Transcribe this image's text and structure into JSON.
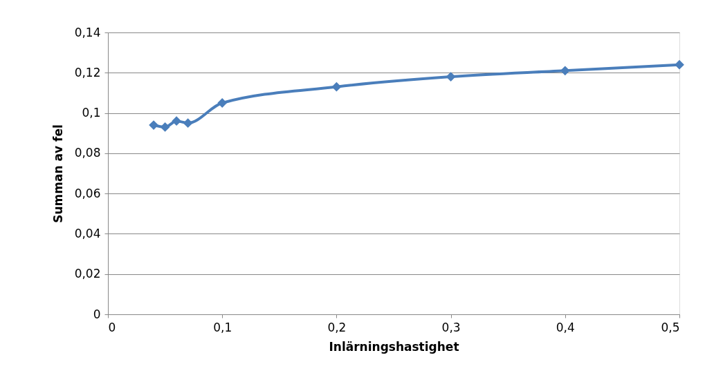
{
  "chart_data": {
    "type": "line",
    "xlabel": "Inlärningshastighet",
    "ylabel": "Summan av fel",
    "x": [
      0.04,
      0.05,
      0.06,
      0.07,
      0.1,
      0.2,
      0.3,
      0.4,
      0.5
    ],
    "series": [
      {
        "color": "#4a7ebb",
        "values": [
          0.094,
          0.093,
          0.096,
          0.095,
          0.105,
          0.113,
          0.118,
          0.121,
          0.124
        ]
      }
    ],
    "xlim": [
      0,
      0.5
    ],
    "ylim": [
      0,
      0.14
    ],
    "xticks": [
      0,
      {
        "value": 0.1,
        "label": "0,1"
      },
      {
        "value": 0.2,
        "label": "0,2"
      },
      {
        "value": 0.3,
        "label": "0,3"
      },
      {
        "value": 0.4,
        "label": "0,4"
      },
      {
        "value": 0.5,
        "label": "0,5"
      }
    ],
    "yticks": [
      0,
      {
        "value": 0.02,
        "label": "0,02"
      },
      {
        "value": 0.04,
        "label": "0,04"
      },
      {
        "value": 0.06,
        "label": "0,06"
      },
      {
        "value": 0.08,
        "label": "0,08"
      },
      {
        "value": 0.1,
        "label": "0,1"
      },
      {
        "value": 0.12,
        "label": "0,12"
      },
      {
        "value": 0.14,
        "label": "0,14"
      }
    ],
    "grid": "y",
    "marker": "diamond",
    "line_style": "solid"
  }
}
